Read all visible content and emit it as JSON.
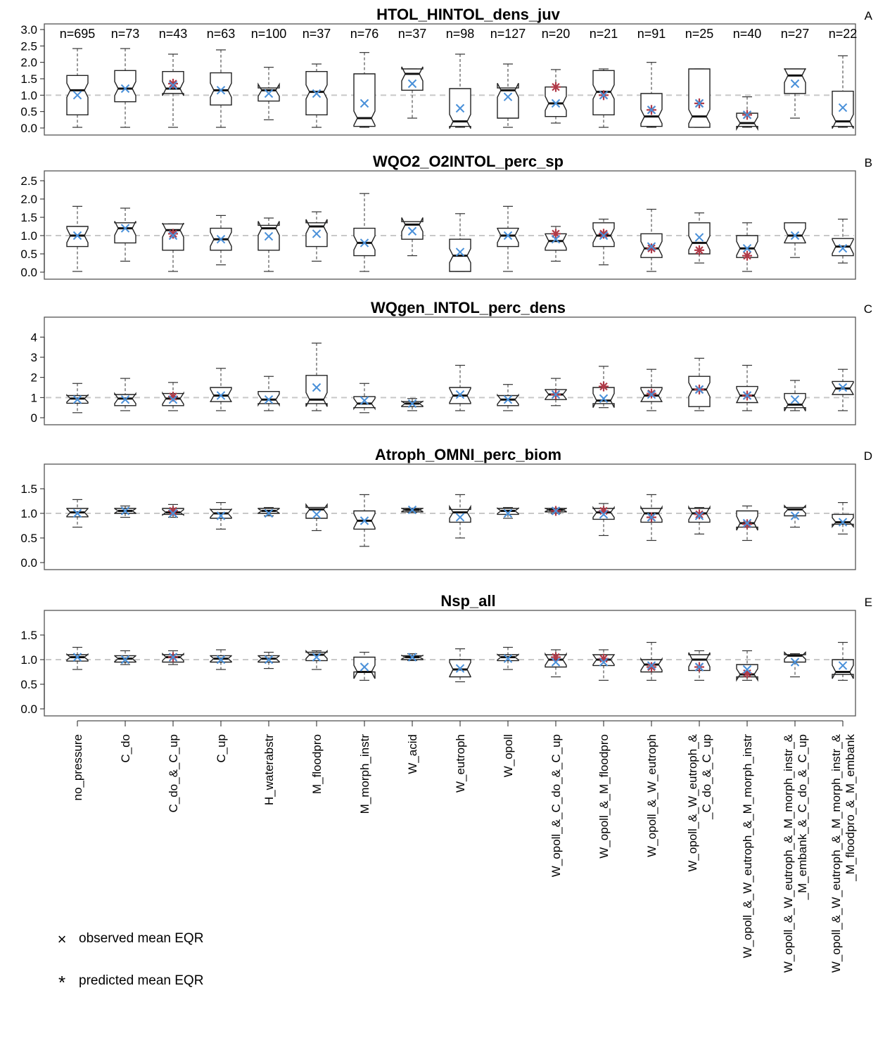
{
  "legend": {
    "observed": {
      "label": "observed mean EQR",
      "symbol": "×",
      "color": "#4a90d9"
    },
    "predicted": {
      "label": "predicted mean EQR",
      "symbol": "*",
      "color": "#b03a48"
    }
  },
  "chart_data": [
    {
      "type": "boxplot",
      "letter": "A",
      "title": "HTOL_HINTOL_dens_juv",
      "ylim": [
        0,
        3.0
      ],
      "yticks": [
        0.0,
        0.5,
        1.0,
        1.5,
        2.0,
        2.5,
        3.0
      ],
      "ytick_labels": [
        "0.0",
        "0.5",
        "1.0",
        "1.5",
        "2.0",
        "2.5",
        "3.0"
      ],
      "reference_line": 1.0,
      "counts": [
        "n=695",
        "n=73",
        "n=43",
        "n=63",
        "n=100",
        "n=37",
        "n=76",
        "n=37",
        "n=98",
        "n=127",
        "n=20",
        "n=21",
        "n=91",
        "n=25",
        "n=40",
        "n=27",
        "n=22"
      ],
      "boxes": [
        {
          "min": 0.02,
          "q1": 0.4,
          "median": 1.15,
          "q3": 1.6,
          "max": 2.42,
          "observed": 1.0,
          "predicted": null
        },
        {
          "min": 0.02,
          "q1": 0.8,
          "median": 1.2,
          "q3": 1.75,
          "max": 2.42,
          "observed": 1.2,
          "predicted": null
        },
        {
          "min": 0.02,
          "q1": 1.05,
          "median": 1.2,
          "q3": 1.72,
          "max": 2.25,
          "observed": 1.3,
          "predicted": 1.35
        },
        {
          "min": 0.02,
          "q1": 0.7,
          "median": 1.15,
          "q3": 1.68,
          "max": 2.38,
          "observed": 1.15,
          "predicted": null
        },
        {
          "min": 0.25,
          "q1": 0.82,
          "median": 1.15,
          "q3": 1.22,
          "max": 1.85,
          "observed": 1.05,
          "predicted": null
        },
        {
          "min": 0.02,
          "q1": 0.4,
          "median": 1.1,
          "q3": 1.72,
          "max": 1.95,
          "observed": 1.05,
          "predicted": null
        },
        {
          "min": 0.02,
          "q1": 0.05,
          "median": 0.3,
          "q3": 1.65,
          "max": 2.3,
          "observed": 0.75,
          "predicted": null
        },
        {
          "min": 0.3,
          "q1": 1.15,
          "median": 1.65,
          "q3": 1.8,
          "max": 1.8,
          "observed": 1.35,
          "predicted": null
        },
        {
          "min": 0.02,
          "q1": 0.05,
          "median": 0.2,
          "q3": 1.2,
          "max": 2.25,
          "observed": 0.6,
          "predicted": null
        },
        {
          "min": 0.02,
          "q1": 0.3,
          "median": 1.15,
          "q3": 1.22,
          "max": 1.95,
          "observed": 0.95,
          "predicted": null
        },
        {
          "min": 0.15,
          "q1": 0.35,
          "median": 0.75,
          "q3": 1.25,
          "max": 1.78,
          "observed": 0.75,
          "predicted": 1.25
        },
        {
          "min": 0.02,
          "q1": 0.4,
          "median": 1.1,
          "q3": 1.75,
          "max": 1.8,
          "observed": 1.0,
          "predicted": 1.0
        },
        {
          "min": 0.02,
          "q1": 0.05,
          "median": 0.35,
          "q3": 1.05,
          "max": 2.0,
          "observed": 0.55,
          "predicted": 0.55
        },
        {
          "min": 0.02,
          "q1": 0.02,
          "median": 0.35,
          "q3": 1.8,
          "max": 1.8,
          "observed": 0.75,
          "predicted": 0.75
        },
        {
          "min": 0.02,
          "q1": 0.05,
          "median": 0.15,
          "q3": 0.45,
          "max": 0.95,
          "observed": 0.4,
          "predicted": 0.4
        },
        {
          "min": 0.3,
          "q1": 1.05,
          "median": 1.6,
          "q3": 1.8,
          "max": 1.8,
          "observed": 1.35,
          "predicted": null
        },
        {
          "min": 0.02,
          "q1": 0.05,
          "median": 0.2,
          "q3": 1.12,
          "max": 2.2,
          "observed": 0.62,
          "predicted": null
        }
      ]
    },
    {
      "type": "boxplot",
      "letter": "B",
      "title": "WQO2_O2INTOL_perc_sp",
      "ylim": [
        0,
        2.5
      ],
      "yticks": [
        0.0,
        0.5,
        1.0,
        1.5,
        2.0,
        2.5
      ],
      "ytick_labels": [
        "0.0",
        "0.5",
        "1.0",
        "1.5",
        "2.0",
        "2.5"
      ],
      "reference_line": 1.0,
      "boxes": [
        {
          "min": 0.02,
          "q1": 0.7,
          "median": 1.0,
          "q3": 1.25,
          "max": 1.8,
          "observed": 1.0,
          "predicted": null
        },
        {
          "min": 0.3,
          "q1": 0.8,
          "median": 1.2,
          "q3": 1.35,
          "max": 1.75,
          "observed": 1.2,
          "predicted": null
        },
        {
          "min": 0.02,
          "q1": 0.6,
          "median": 1.15,
          "q3": 1.32,
          "max": 1.32,
          "observed": 1.0,
          "predicted": 1.05
        },
        {
          "min": 0.2,
          "q1": 0.6,
          "median": 0.9,
          "q3": 1.2,
          "max": 1.55,
          "observed": 0.9,
          "predicted": null
        },
        {
          "min": 0.02,
          "q1": 0.6,
          "median": 1.2,
          "q3": 1.28,
          "max": 1.48,
          "observed": 0.98,
          "predicted": null
        },
        {
          "min": 0.3,
          "q1": 0.7,
          "median": 1.25,
          "q3": 1.35,
          "max": 1.65,
          "observed": 1.05,
          "predicted": null
        },
        {
          "min": 0.02,
          "q1": 0.45,
          "median": 0.8,
          "q3": 1.2,
          "max": 2.15,
          "observed": 0.8,
          "predicted": null
        },
        {
          "min": 0.45,
          "q1": 0.9,
          "median": 1.3,
          "q3": 1.38,
          "max": 1.38,
          "observed": 1.12,
          "predicted": null
        },
        {
          "min": 0.02,
          "q1": 0.02,
          "median": 0.45,
          "q3": 0.9,
          "max": 1.6,
          "observed": 0.55,
          "predicted": null
        },
        {
          "min": 0.02,
          "q1": 0.7,
          "median": 1.0,
          "q3": 1.2,
          "max": 1.8,
          "observed": 1.0,
          "predicted": null
        },
        {
          "min": 0.3,
          "q1": 0.6,
          "median": 0.85,
          "q3": 1.05,
          "max": 1.25,
          "observed": 0.9,
          "predicted": 1.05
        },
        {
          "min": 0.2,
          "q1": 0.7,
          "median": 1.0,
          "q3": 1.35,
          "max": 1.45,
          "observed": 1.0,
          "predicted": 1.05
        },
        {
          "min": 0.02,
          "q1": 0.4,
          "median": 0.65,
          "q3": 1.05,
          "max": 1.72,
          "observed": 0.7,
          "predicted": 0.65
        },
        {
          "min": 0.25,
          "q1": 0.5,
          "median": 0.8,
          "q3": 1.35,
          "max": 1.62,
          "observed": 0.95,
          "predicted": 0.6
        },
        {
          "min": 0.02,
          "q1": 0.4,
          "median": 0.65,
          "q3": 1.0,
          "max": 1.35,
          "observed": 0.65,
          "predicted": 0.45
        },
        {
          "min": 0.4,
          "q1": 0.8,
          "median": 1.0,
          "q3": 1.35,
          "max": 1.35,
          "observed": 1.0,
          "predicted": null
        },
        {
          "min": 0.25,
          "q1": 0.45,
          "median": 0.7,
          "q3": 0.92,
          "max": 1.45,
          "observed": 0.65,
          "predicted": null
        }
      ]
    },
    {
      "type": "boxplot",
      "letter": "C",
      "title": "WQgen_INTOL_perc_dens",
      "ylim": [
        0,
        4.5
      ],
      "yticks": [
        0,
        1,
        2,
        3,
        4
      ],
      "ytick_labels": [
        "0",
        "1",
        "2",
        "3",
        "4"
      ],
      "reference_line": 1.0,
      "boxes": [
        {
          "min": 0.25,
          "q1": 0.72,
          "median": 0.95,
          "q3": 1.1,
          "max": 1.7,
          "observed": 0.9,
          "predicted": null
        },
        {
          "min": 0.35,
          "q1": 0.6,
          "median": 0.95,
          "q3": 1.15,
          "max": 1.95,
          "observed": 0.9,
          "predicted": null
        },
        {
          "min": 0.35,
          "q1": 0.6,
          "median": 0.95,
          "q3": 1.2,
          "max": 1.75,
          "observed": 0.9,
          "predicted": 1.05
        },
        {
          "min": 0.35,
          "q1": 0.8,
          "median": 1.1,
          "q3": 1.5,
          "max": 2.45,
          "observed": 1.1,
          "predicted": null
        },
        {
          "min": 0.35,
          "q1": 0.7,
          "median": 0.9,
          "q3": 1.3,
          "max": 2.05,
          "observed": 0.9,
          "predicted": null
        },
        {
          "min": 0.35,
          "q1": 0.7,
          "median": 0.9,
          "q3": 2.1,
          "max": 3.7,
          "observed": 1.5,
          "predicted": null
        },
        {
          "min": 0.25,
          "q1": 0.5,
          "median": 0.7,
          "q3": 1.05,
          "max": 1.7,
          "observed": 0.85,
          "predicted": null
        },
        {
          "min": 0.35,
          "q1": 0.55,
          "median": 0.7,
          "q3": 0.8,
          "max": 0.95,
          "observed": 0.7,
          "predicted": null
        },
        {
          "min": 0.35,
          "q1": 0.7,
          "median": 1.1,
          "q3": 1.5,
          "max": 2.6,
          "observed": 1.15,
          "predicted": null
        },
        {
          "min": 0.35,
          "q1": 0.6,
          "median": 0.9,
          "q3": 1.1,
          "max": 1.65,
          "observed": 0.9,
          "predicted": null
        },
        {
          "min": 0.6,
          "q1": 0.9,
          "median": 1.15,
          "q3": 1.4,
          "max": 1.95,
          "observed": 1.15,
          "predicted": 1.15
        },
        {
          "min": 0.5,
          "q1": 0.7,
          "median": 0.85,
          "q3": 1.5,
          "max": 2.55,
          "observed": 0.95,
          "predicted": 1.55
        },
        {
          "min": 0.35,
          "q1": 0.8,
          "median": 1.1,
          "q3": 1.5,
          "max": 2.4,
          "observed": 1.15,
          "predicted": 1.2
        },
        {
          "min": 0.35,
          "q1": 0.55,
          "median": 1.4,
          "q3": 2.05,
          "max": 2.95,
          "observed": 1.4,
          "predicted": 1.4
        },
        {
          "min": 0.35,
          "q1": 0.75,
          "median": 1.1,
          "q3": 1.55,
          "max": 2.6,
          "observed": 1.1,
          "predicted": 1.1
        },
        {
          "min": 0.35,
          "q1": 0.5,
          "median": 0.65,
          "q3": 1.2,
          "max": 1.85,
          "observed": 0.9,
          "predicted": null
        },
        {
          "min": 0.35,
          "q1": 1.15,
          "median": 1.45,
          "q3": 1.8,
          "max": 2.4,
          "observed": 1.5,
          "predicted": null
        }
      ]
    },
    {
      "type": "boxplot",
      "letter": "D",
      "title": "Atroph_OMNI_perc_biom",
      "ylim": [
        0,
        1.8
      ],
      "yticks": [
        0.0,
        0.5,
        1.0,
        1.5
      ],
      "ytick_labels": [
        "0.0",
        "0.5",
        "1.0",
        "1.5"
      ],
      "reference_line": 1.0,
      "boxes": [
        {
          "min": 0.72,
          "q1": 0.93,
          "median": 1.02,
          "q3": 1.1,
          "max": 1.28,
          "observed": 1.0,
          "predicted": null
        },
        {
          "min": 0.92,
          "q1": 1.0,
          "median": 1.05,
          "q3": 1.1,
          "max": 1.15,
          "observed": 1.05,
          "predicted": null
        },
        {
          "min": 0.92,
          "q1": 0.98,
          "median": 1.02,
          "q3": 1.1,
          "max": 1.18,
          "observed": 1.0,
          "predicted": 1.05
        },
        {
          "min": 0.68,
          "q1": 0.9,
          "median": 1.0,
          "q3": 1.08,
          "max": 1.22,
          "observed": 0.95,
          "predicted": null
        },
        {
          "min": 0.95,
          "q1": 1.0,
          "median": 1.05,
          "q3": 1.1,
          "max": 1.12,
          "observed": 1.0,
          "predicted": null
        },
        {
          "min": 0.65,
          "q1": 0.9,
          "median": 1.08,
          "q3": 1.12,
          "max": 1.12,
          "observed": 0.98,
          "predicted": null
        },
        {
          "min": 0.33,
          "q1": 0.68,
          "median": 0.85,
          "q3": 1.05,
          "max": 1.38,
          "observed": 0.85,
          "predicted": null
        },
        {
          "min": 1.02,
          "q1": 1.03,
          "median": 1.07,
          "q3": 1.1,
          "max": 1.1,
          "observed": 1.07,
          "predicted": null
        },
        {
          "min": 0.5,
          "q1": 0.82,
          "median": 1.02,
          "q3": 1.08,
          "max": 1.38,
          "observed": 0.92,
          "predicted": null
        },
        {
          "min": 0.9,
          "q1": 0.98,
          "median": 1.05,
          "q3": 1.1,
          "max": 1.12,
          "observed": 1.0,
          "predicted": null
        },
        {
          "min": 1.0,
          "q1": 1.03,
          "median": 1.07,
          "q3": 1.1,
          "max": 1.1,
          "observed": 1.05,
          "predicted": 1.05
        },
        {
          "min": 0.55,
          "q1": 0.88,
          "median": 1.02,
          "q3": 1.1,
          "max": 1.2,
          "observed": 0.98,
          "predicted": 1.05
        },
        {
          "min": 0.45,
          "q1": 0.82,
          "median": 1.0,
          "q3": 1.1,
          "max": 1.38,
          "observed": 0.92,
          "predicted": 0.92
        },
        {
          "min": 0.58,
          "q1": 0.82,
          "median": 1.0,
          "q3": 1.1,
          "max": 1.12,
          "observed": 0.95,
          "predicted": 0.98
        },
        {
          "min": 0.45,
          "q1": 0.72,
          "median": 0.8,
          "q3": 1.05,
          "max": 1.15,
          "observed": 0.8,
          "predicted": 0.78
        },
        {
          "min": 0.72,
          "q1": 0.95,
          "median": 1.08,
          "q3": 1.12,
          "max": 1.12,
          "observed": 0.95,
          "predicted": null
        },
        {
          "min": 0.58,
          "q1": 0.78,
          "median": 0.82,
          "q3": 0.98,
          "max": 1.22,
          "observed": 0.82,
          "predicted": null
        }
      ]
    },
    {
      "type": "boxplot",
      "letter": "E",
      "title": "Nsp_all",
      "ylim": [
        0,
        1.8
      ],
      "yticks": [
        0.0,
        0.5,
        1.0,
        1.5
      ],
      "ytick_labels": [
        "0.0",
        "0.5",
        "1.0",
        "1.5"
      ],
      "reference_line": 1.0,
      "boxes": [
        {
          "min": 0.8,
          "q1": 0.97,
          "median": 1.05,
          "q3": 1.1,
          "max": 1.25,
          "observed": 1.05,
          "predicted": null
        },
        {
          "min": 0.9,
          "q1": 0.95,
          "median": 1.02,
          "q3": 1.08,
          "max": 1.18,
          "observed": 1.0,
          "predicted": null
        },
        {
          "min": 0.9,
          "q1": 0.95,
          "median": 1.05,
          "q3": 1.1,
          "max": 1.18,
          "observed": 1.05,
          "predicted": 1.05
        },
        {
          "min": 0.8,
          "q1": 0.95,
          "median": 1.02,
          "q3": 1.08,
          "max": 1.2,
          "observed": 1.0,
          "predicted": null
        },
        {
          "min": 0.82,
          "q1": 0.95,
          "median": 1.02,
          "q3": 1.08,
          "max": 1.15,
          "observed": 1.0,
          "predicted": null
        },
        {
          "min": 0.8,
          "q1": 0.98,
          "median": 1.1,
          "q3": 1.15,
          "max": 1.18,
          "observed": 1.05,
          "predicted": null
        },
        {
          "min": 0.58,
          "q1": 0.75,
          "median": 0.75,
          "q3": 1.05,
          "max": 1.15,
          "observed": 0.85,
          "predicted": null
        },
        {
          "min": 0.98,
          "q1": 1.0,
          "median": 1.05,
          "q3": 1.08,
          "max": 1.12,
          "observed": 1.05,
          "predicted": null
        },
        {
          "min": 0.55,
          "q1": 0.65,
          "median": 0.8,
          "q3": 1.0,
          "max": 1.22,
          "observed": 0.82,
          "predicted": null
        },
        {
          "min": 0.8,
          "q1": 0.98,
          "median": 1.05,
          "q3": 1.1,
          "max": 1.25,
          "observed": 1.02,
          "predicted": null
        },
        {
          "min": 0.65,
          "q1": 0.85,
          "median": 1.0,
          "q3": 1.1,
          "max": 1.2,
          "observed": 0.95,
          "predicted": 1.05
        },
        {
          "min": 0.58,
          "q1": 0.88,
          "median": 1.0,
          "q3": 1.1,
          "max": 1.2,
          "observed": 0.95,
          "predicted": 1.02
        },
        {
          "min": 0.58,
          "q1": 0.75,
          "median": 0.9,
          "q3": 1.0,
          "max": 1.35,
          "observed": 0.88,
          "predicted": 0.85
        },
        {
          "min": 0.58,
          "q1": 0.78,
          "median": 1.0,
          "q3": 1.1,
          "max": 1.18,
          "observed": 0.85,
          "predicted": 0.85
        },
        {
          "min": 0.58,
          "q1": 0.65,
          "median": 0.7,
          "q3": 0.9,
          "max": 1.18,
          "observed": 0.8,
          "predicted": 0.72
        },
        {
          "min": 0.65,
          "q1": 0.95,
          "median": 1.08,
          "q3": 1.1,
          "max": 1.12,
          "observed": 0.95,
          "predicted": null
        },
        {
          "min": 0.58,
          "q1": 0.7,
          "median": 0.75,
          "q3": 1.0,
          "max": 1.35,
          "observed": 0.88,
          "predicted": null
        }
      ]
    }
  ],
  "categories": [
    [
      "no_pressure"
    ],
    [
      "C_do"
    ],
    [
      "C_do_&_C_up"
    ],
    [
      "C_up"
    ],
    [
      "H_waterabstr"
    ],
    [
      "M_floodpro"
    ],
    [
      "M_morph_instr"
    ],
    [
      "W_acid"
    ],
    [
      "W_eutroph"
    ],
    [
      "W_opoll"
    ],
    [
      "W_opoll_&_C_do_&_C_up"
    ],
    [
      "W_opoll_&_M_floodpro"
    ],
    [
      "W_opoll_&_W_eutroph"
    ],
    [
      "W_opoll_&_W_eutroph_&",
      "_C_do_&_C_up"
    ],
    [
      "W_opoll_&_W_eutroph_&_M_morph_instr"
    ],
    [
      "W_opoll_&_W_eutroph_&_M_morph_instr_&",
      "_M_embank_&_C_do_&_C_up"
    ],
    [
      "W_opoll_&_W_eutroph_&_M_morph_instr_&",
      "_M_floodpro_&_M_embank"
    ]
  ]
}
